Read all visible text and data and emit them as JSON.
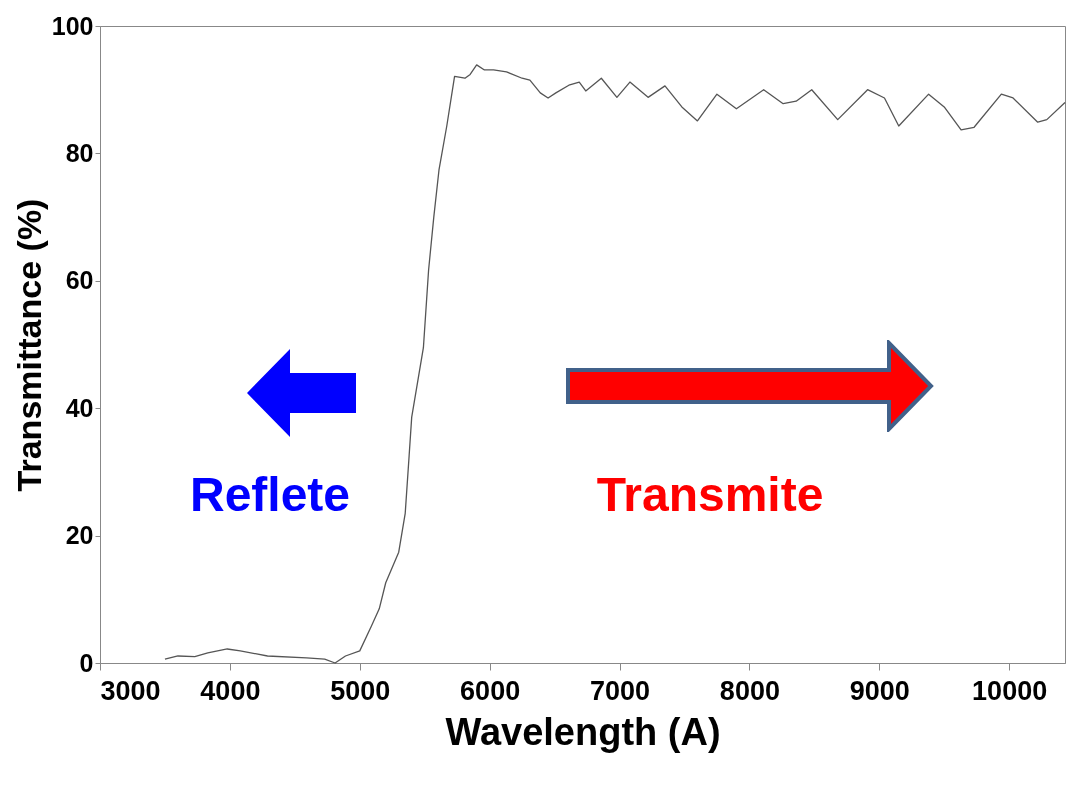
{
  "chart_data": {
    "type": "line",
    "xlabel": "Wavelength (A)",
    "ylabel": "Transmittance (%)",
    "annotations": [
      "Reflete",
      "Transmite"
    ],
    "xlim": [
      3000,
      10430
    ],
    "xticks": [
      3000,
      4000,
      5000,
      6000,
      7000,
      8000,
      9000,
      10000
    ],
    "ylim": [
      0,
      100
    ],
    "yticks": [
      0,
      20,
      40,
      60,
      80,
      100
    ],
    "grid": false,
    "marker": "none",
    "line_style": "solid",
    "series": [
      {
        "color": "#555555",
        "x": [
          3500,
          3600,
          3730,
          3830,
          3980,
          4080,
          4290,
          4590,
          4730,
          4810,
          4890,
          5000,
          5090,
          5150,
          5200,
          5300,
          5350,
          5380,
          5400,
          5490,
          5530,
          5570,
          5610,
          5670,
          5730,
          5810,
          5850,
          5900,
          5960,
          6030,
          6130,
          6250,
          6310,
          6390,
          6450,
          6510,
          6610,
          6690,
          6740,
          6860,
          6980,
          7080,
          7220,
          7350,
          7480,
          7600,
          7750,
          7900,
          8110,
          8260,
          8360,
          8480,
          8680,
          8910,
          9040,
          9150,
          9380,
          9500,
          9630,
          9730,
          9940,
          10030,
          10220,
          10290,
          10430
        ],
        "values": [
          0.6,
          1.1,
          1.0,
          1.6,
          2.2,
          1.9,
          1.1,
          0.8,
          0.6,
          0.0,
          1.1,
          1.9,
          5.8,
          8.5,
          12.6,
          17.4,
          23.5,
          32.5,
          38.6,
          49.5,
          61.7,
          70.0,
          77.4,
          84.3,
          92.1,
          91.8,
          92.4,
          93.9,
          93.1,
          93.1,
          92.8,
          91.8,
          91.5,
          89.5,
          88.7,
          89.5,
          90.7,
          91.2,
          89.8,
          91.8,
          88.8,
          91.2,
          88.8,
          90.6,
          87.3,
          85.1,
          89.3,
          87.0,
          90.0,
          87.8,
          88.2,
          90.0,
          85.3,
          90.0,
          88.7,
          84.3,
          89.3,
          87.3,
          83.7,
          84.1,
          89.3,
          88.7,
          84.9,
          85.3,
          88.0
        ]
      }
    ]
  }
}
